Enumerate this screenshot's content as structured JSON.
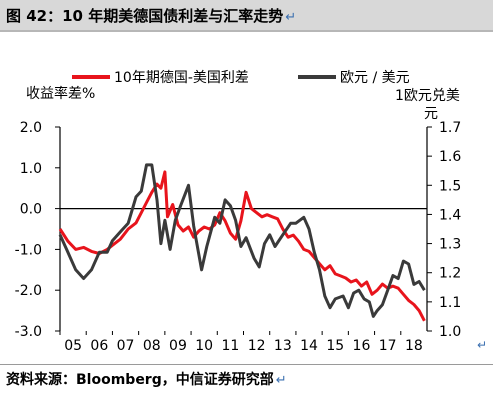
{
  "figure": {
    "title": "图 42：10 年期美德国债利差与汇率走势",
    "source": "资料来源：Bloomberg，中信证券研究部",
    "para_mark": "↵"
  },
  "chart_data": {
    "type": "line",
    "xlabel": "",
    "x_ticks": [
      "05",
      "06",
      "07",
      "08",
      "09",
      "10",
      "11",
      "12",
      "13",
      "14",
      "15",
      "16",
      "17",
      "18"
    ],
    "x_range": [
      2005.0,
      2019.0
    ],
    "y_left": {
      "label": "收益率差%",
      "ylim": [
        -3.0,
        2.0
      ],
      "ticks": [
        "2.0",
        "1.0",
        "0.0",
        "-1.0",
        "-2.0",
        "-3.0"
      ]
    },
    "y_right": {
      "label": "1欧元兑美元",
      "ylim": [
        1.0,
        1.7
      ],
      "ticks": [
        "1.7",
        "1.6",
        "1.5",
        "1.4",
        "1.3",
        "1.2",
        "1.1",
        "1.0"
      ]
    },
    "grid": false,
    "zero_line": true,
    "legend_placement": "top",
    "series": [
      {
        "name": "10年期德国-美国利差",
        "axis": "left",
        "color": "#e8141c",
        "points": [
          [
            2005.0,
            -0.5
          ],
          [
            2005.3,
            -0.8
          ],
          [
            2005.6,
            -1.0
          ],
          [
            2005.9,
            -0.95
          ],
          [
            2006.2,
            -1.05
          ],
          [
            2006.5,
            -1.1
          ],
          [
            2006.8,
            -1.0
          ],
          [
            2007.0,
            -0.9
          ],
          [
            2007.3,
            -0.75
          ],
          [
            2007.6,
            -0.5
          ],
          [
            2007.9,
            -0.35
          ],
          [
            2008.1,
            -0.1
          ],
          [
            2008.3,
            0.15
          ],
          [
            2008.5,
            0.4
          ],
          [
            2008.7,
            0.6
          ],
          [
            2008.85,
            0.5
          ],
          [
            2009.0,
            0.9
          ],
          [
            2009.1,
            -0.2
          ],
          [
            2009.3,
            0.1
          ],
          [
            2009.5,
            -0.4
          ],
          [
            2009.7,
            -0.55
          ],
          [
            2009.9,
            -0.45
          ],
          [
            2010.1,
            -0.7
          ],
          [
            2010.3,
            -0.55
          ],
          [
            2010.5,
            -0.45
          ],
          [
            2010.7,
            -0.5
          ],
          [
            2010.9,
            -0.4
          ],
          [
            2011.1,
            -0.1
          ],
          [
            2011.3,
            -0.3
          ],
          [
            2011.5,
            -0.6
          ],
          [
            2011.7,
            -0.75
          ],
          [
            2011.9,
            -0.3
          ],
          [
            2012.1,
            0.4
          ],
          [
            2012.3,
            0.0
          ],
          [
            2012.5,
            -0.1
          ],
          [
            2012.7,
            -0.2
          ],
          [
            2012.9,
            -0.15
          ],
          [
            2013.1,
            -0.2
          ],
          [
            2013.3,
            -0.25
          ],
          [
            2013.5,
            -0.5
          ],
          [
            2013.7,
            -0.7
          ],
          [
            2013.9,
            -0.65
          ],
          [
            2014.1,
            -0.8
          ],
          [
            2014.3,
            -1.0
          ],
          [
            2014.5,
            -1.05
          ],
          [
            2014.7,
            -1.2
          ],
          [
            2014.9,
            -1.35
          ],
          [
            2015.1,
            -1.5
          ],
          [
            2015.3,
            -1.4
          ],
          [
            2015.5,
            -1.6
          ],
          [
            2015.7,
            -1.65
          ],
          [
            2015.9,
            -1.7
          ],
          [
            2016.1,
            -1.8
          ],
          [
            2016.3,
            -1.75
          ],
          [
            2016.5,
            -1.9
          ],
          [
            2016.7,
            -1.8
          ],
          [
            2016.9,
            -2.1
          ],
          [
            2017.1,
            -2.0
          ],
          [
            2017.3,
            -1.85
          ],
          [
            2017.5,
            -1.95
          ],
          [
            2017.7,
            -1.9
          ],
          [
            2017.9,
            -1.95
          ],
          [
            2018.1,
            -2.1
          ],
          [
            2018.3,
            -2.25
          ],
          [
            2018.5,
            -2.35
          ],
          [
            2018.7,
            -2.5
          ],
          [
            2018.9,
            -2.75
          ]
        ]
      },
      {
        "name": "欧元 / 美元",
        "axis": "right",
        "color": "#3a3a3a",
        "points": [
          [
            2005.0,
            1.33
          ],
          [
            2005.3,
            1.27
          ],
          [
            2005.6,
            1.21
          ],
          [
            2005.9,
            1.18
          ],
          [
            2006.2,
            1.21
          ],
          [
            2006.5,
            1.27
          ],
          [
            2006.8,
            1.27
          ],
          [
            2007.0,
            1.31
          ],
          [
            2007.3,
            1.34
          ],
          [
            2007.6,
            1.37
          ],
          [
            2007.9,
            1.46
          ],
          [
            2008.1,
            1.48
          ],
          [
            2008.3,
            1.57
          ],
          [
            2008.5,
            1.57
          ],
          [
            2008.7,
            1.45
          ],
          [
            2008.85,
            1.3
          ],
          [
            2009.0,
            1.38
          ],
          [
            2009.2,
            1.28
          ],
          [
            2009.4,
            1.38
          ],
          [
            2009.6,
            1.43
          ],
          [
            2009.9,
            1.5
          ],
          [
            2010.1,
            1.36
          ],
          [
            2010.4,
            1.21
          ],
          [
            2010.6,
            1.29
          ],
          [
            2010.9,
            1.39
          ],
          [
            2011.1,
            1.37
          ],
          [
            2011.3,
            1.45
          ],
          [
            2011.5,
            1.43
          ],
          [
            2011.7,
            1.38
          ],
          [
            2011.9,
            1.29
          ],
          [
            2012.1,
            1.32
          ],
          [
            2012.4,
            1.25
          ],
          [
            2012.6,
            1.22
          ],
          [
            2012.8,
            1.3
          ],
          [
            2013.0,
            1.33
          ],
          [
            2013.2,
            1.29
          ],
          [
            2013.5,
            1.33
          ],
          [
            2013.8,
            1.37
          ],
          [
            2014.0,
            1.37
          ],
          [
            2014.3,
            1.39
          ],
          [
            2014.5,
            1.35
          ],
          [
            2014.7,
            1.27
          ],
          [
            2014.9,
            1.21
          ],
          [
            2015.1,
            1.12
          ],
          [
            2015.3,
            1.08
          ],
          [
            2015.5,
            1.11
          ],
          [
            2015.8,
            1.12
          ],
          [
            2016.0,
            1.08
          ],
          [
            2016.2,
            1.13
          ],
          [
            2016.4,
            1.14
          ],
          [
            2016.6,
            1.11
          ],
          [
            2016.8,
            1.1
          ],
          [
            2016.95,
            1.05
          ],
          [
            2017.1,
            1.07
          ],
          [
            2017.3,
            1.09
          ],
          [
            2017.5,
            1.14
          ],
          [
            2017.7,
            1.19
          ],
          [
            2017.9,
            1.18
          ],
          [
            2018.1,
            1.24
          ],
          [
            2018.3,
            1.23
          ],
          [
            2018.5,
            1.16
          ],
          [
            2018.7,
            1.17
          ],
          [
            2018.9,
            1.14
          ]
        ]
      }
    ]
  }
}
